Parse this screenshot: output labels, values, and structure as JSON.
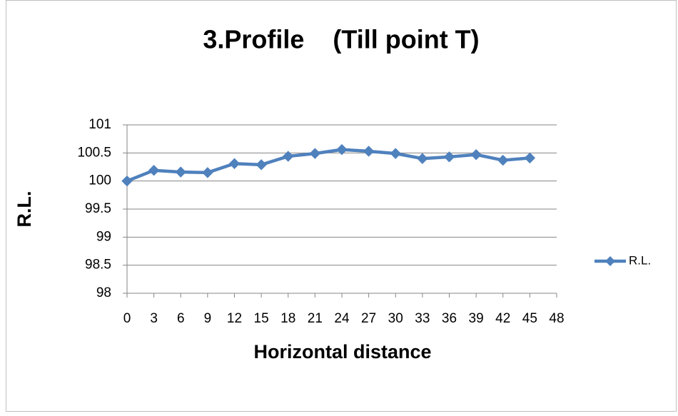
{
  "chart_data": {
    "type": "line",
    "title": "3.Profile    (Till point T)",
    "x_label": "Horizontal distance",
    "y_label": "R.L.",
    "x": [
      0,
      3,
      6,
      9,
      12,
      15,
      18,
      21,
      24,
      27,
      30,
      33,
      36,
      39,
      42,
      45
    ],
    "series": [
      {
        "name": "R.L.",
        "color": "#4f81bd",
        "values": [
          100,
          100.19,
          100.16,
          100.15,
          100.31,
          100.29,
          100.44,
          100.49,
          100.56,
          100.53,
          100.49,
          100.4,
          100.43,
          100.47,
          100.37,
          100.41
        ]
      }
    ],
    "xlim": [
      0,
      48
    ],
    "xticks": [
      0,
      3,
      6,
      9,
      12,
      15,
      18,
      21,
      24,
      27,
      30,
      33,
      36,
      39,
      42,
      45,
      48
    ],
    "ylim": [
      98,
      101
    ],
    "yticks": [
      98,
      98.5,
      99,
      99.5,
      100,
      100.5,
      101
    ],
    "grid": true,
    "legend": "right"
  }
}
